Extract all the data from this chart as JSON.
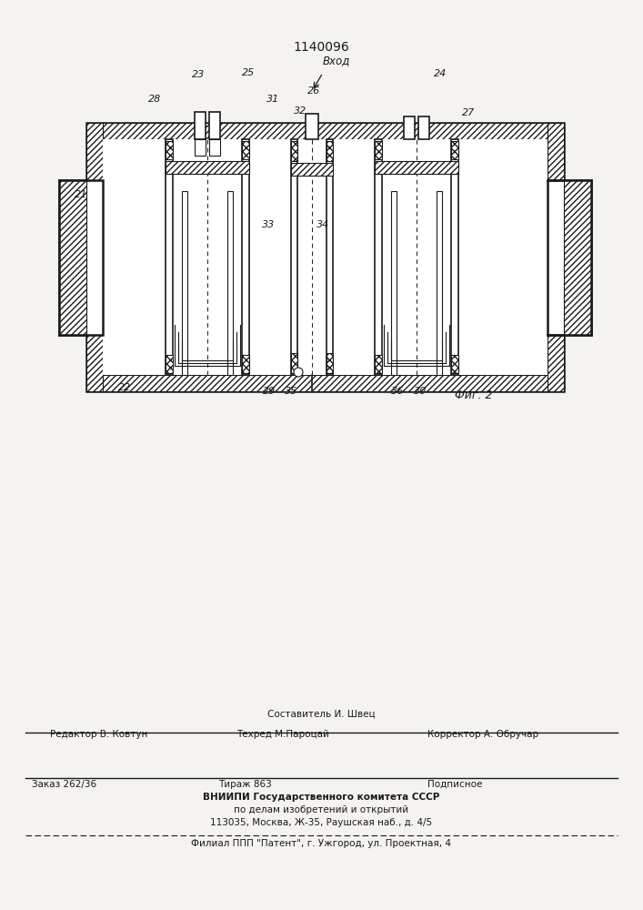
{
  "patent_number": "1140096",
  "bg_color": "#f5f3f0",
  "footer": {
    "line1_center": "Составитель И. Швец",
    "line2_left": "Редактор В. Ковтун",
    "line2_center": "Техред М.Пароцай",
    "line2_right": "Корректор А. Обручар",
    "line4_left": "Заказ 262/36",
    "line4_center": "Тираж 863",
    "line4_right": "Подписное",
    "line5": "ВНИИПИ Государственного комитета СССР",
    "line6": "по делам изобретений и открытий",
    "line7": "113035, Москва, Ж-35, Раушская наб., д. 4/5",
    "line9": "Филиал ППП \"Патент\", г. Ужгород, ул. Проектная, 4"
  }
}
